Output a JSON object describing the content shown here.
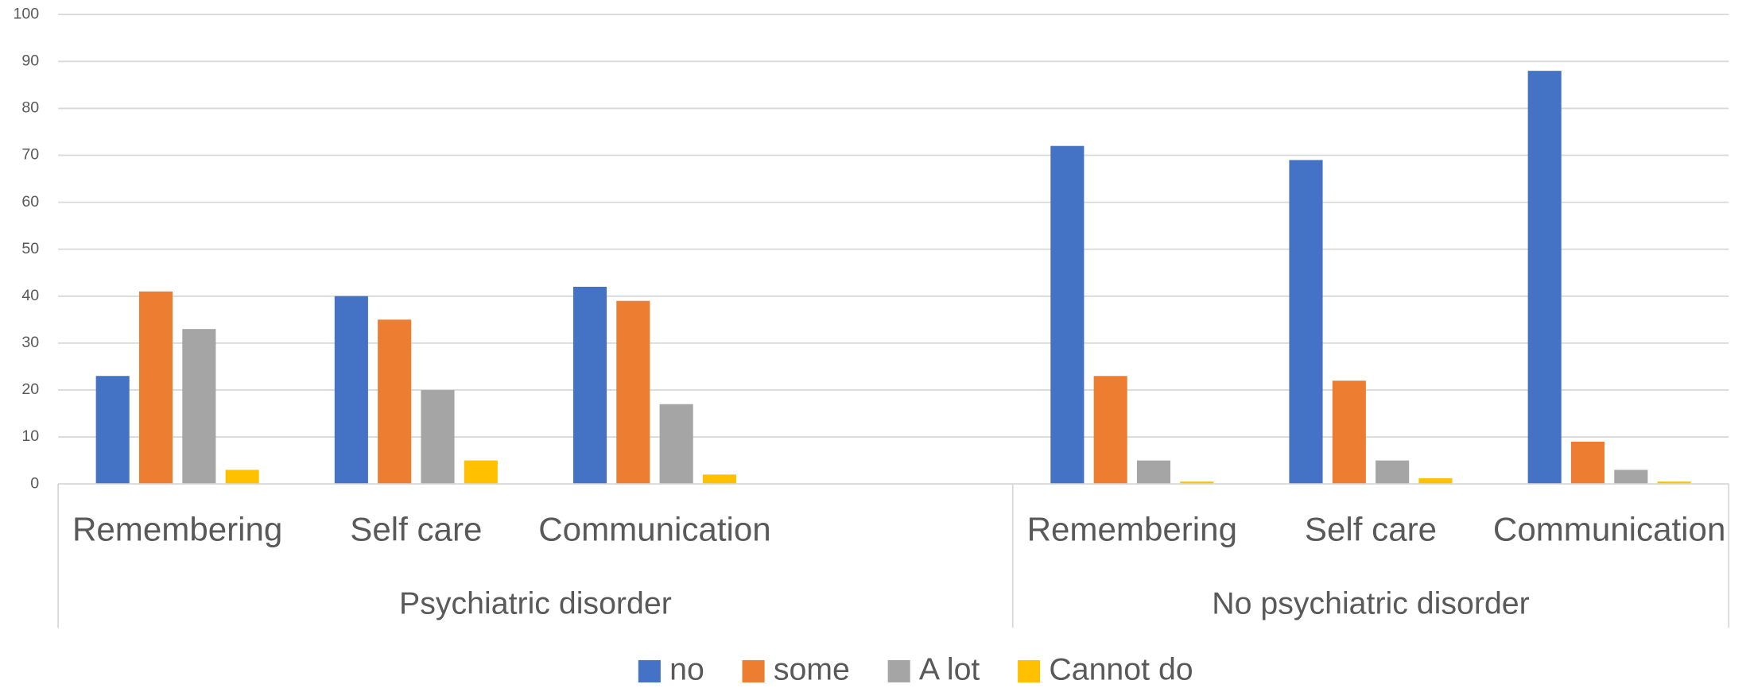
{
  "chart_data": {
    "type": "bar",
    "categories": [
      "Remembering",
      "Self care",
      "Communication",
      null,
      "Remembering",
      "Self care",
      "Communication"
    ],
    "groups": [
      {
        "name": "Psychiatric disorder",
        "size": 4
      },
      {
        "name": "No psychiatric disorder",
        "size": 3
      }
    ],
    "series": [
      {
        "name": "no",
        "color": "#4472c4",
        "values": [
          23,
          40,
          42,
          null,
          72,
          69,
          88
        ]
      },
      {
        "name": "some",
        "color": "#ed7d31",
        "values": [
          41,
          35,
          39,
          null,
          23,
          22,
          9
        ]
      },
      {
        "name": "A lot",
        "color": "#a5a5a5",
        "values": [
          33,
          20,
          17,
          null,
          5,
          5,
          3
        ]
      },
      {
        "name": "Cannot do",
        "color": "#ffc000",
        "values": [
          3,
          5,
          2,
          null,
          0.5,
          1.2,
          0.5
        ]
      }
    ],
    "ylim": [
      0,
      100
    ],
    "yticks": [
      0,
      10,
      20,
      30,
      40,
      50,
      60,
      70,
      80,
      90,
      100
    ],
    "grid": true,
    "legend": "bottom"
  }
}
